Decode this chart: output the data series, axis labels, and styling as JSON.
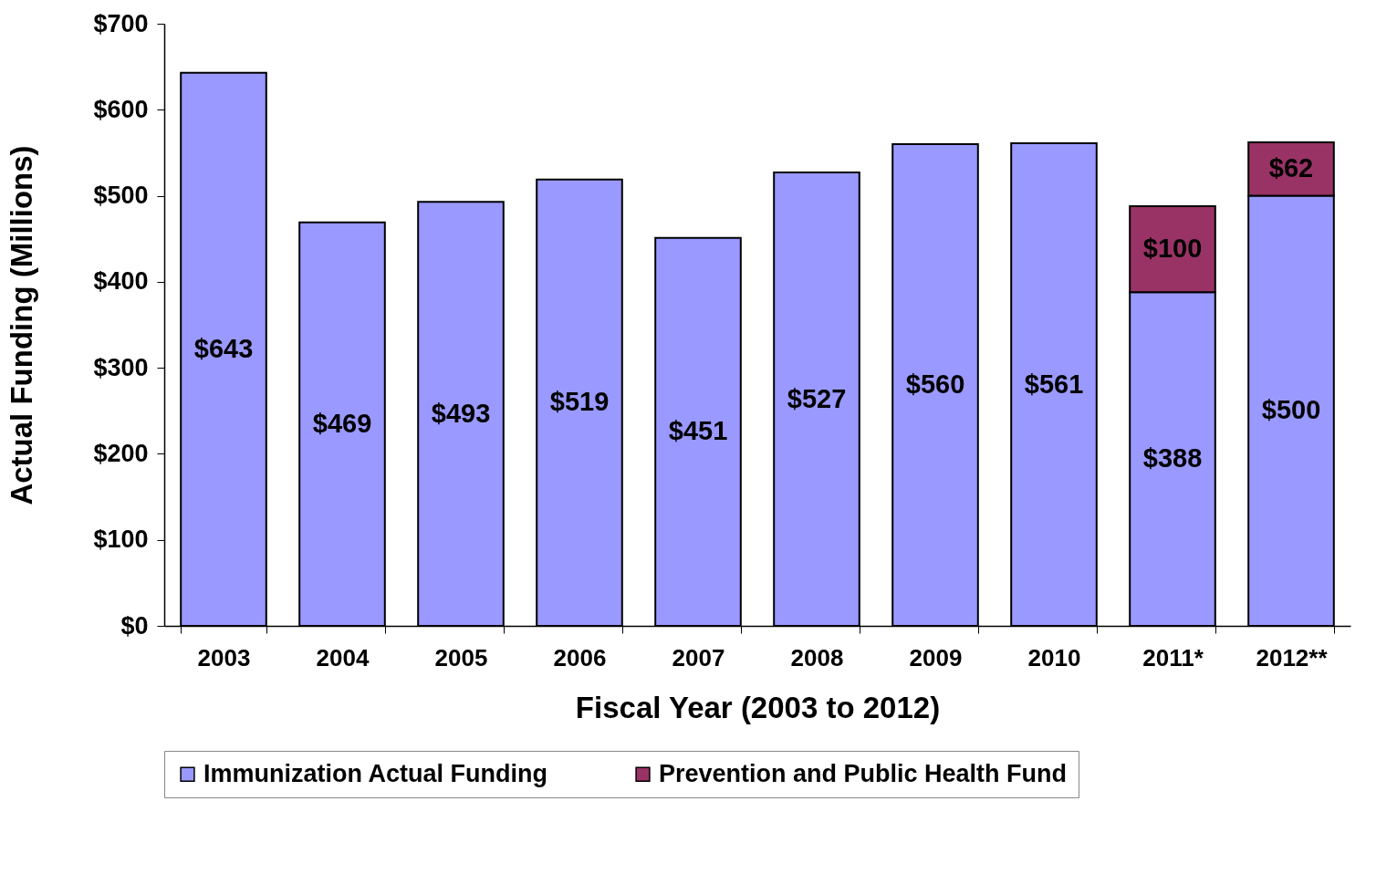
{
  "chart_data": {
    "type": "bar",
    "stacked": true,
    "xlabel": "Fiscal Year (2003 to 2012)",
    "ylabel": "Actual Funding (Millions)",
    "categories": [
      "2003",
      "2004",
      "2005",
      "2006",
      "2007",
      "2008",
      "2009",
      "2010",
      "2011*",
      "2012**"
    ],
    "series": [
      {
        "name": "Immunization Actual Funding",
        "color": "#9999ff",
        "values": [
          643,
          469,
          493,
          519,
          451,
          527,
          560,
          561,
          388,
          500
        ],
        "value_labels": [
          "$643",
          "$469",
          "$493",
          "$519",
          "$451",
          "$527",
          "$560",
          "$561",
          "$388",
          "$500"
        ]
      },
      {
        "name": "Prevention and Public Health Fund",
        "color": "#993366",
        "values": [
          null,
          null,
          null,
          null,
          null,
          null,
          null,
          null,
          100,
          62
        ],
        "value_labels": [
          null,
          null,
          null,
          null,
          null,
          null,
          null,
          null,
          "$100",
          "$62"
        ]
      }
    ],
    "ylim": [
      0,
      700
    ],
    "yticks": [
      {
        "value": 0,
        "label": "$0"
      },
      {
        "value": 100,
        "label": "$100"
      },
      {
        "value": 200,
        "label": "$200"
      },
      {
        "value": 300,
        "label": "$300"
      },
      {
        "value": 400,
        "label": "$400"
      },
      {
        "value": 500,
        "label": "$500"
      },
      {
        "value": 600,
        "label": "$600"
      },
      {
        "value": 700,
        "label": "$700"
      }
    ],
    "grid": false,
    "legend": "bottom"
  }
}
